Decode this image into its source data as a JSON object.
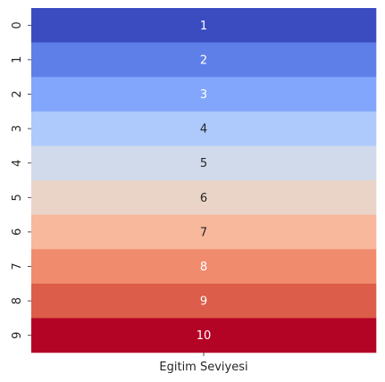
{
  "chart_data": {
    "type": "heatmap",
    "title": "",
    "xlabel": "",
    "ylabel": "",
    "columns": [
      "Egitim Seviyesi"
    ],
    "rows": [
      "0",
      "1",
      "2",
      "3",
      "4",
      "5",
      "6",
      "7",
      "8",
      "9"
    ],
    "values": [
      [
        1
      ],
      [
        2
      ],
      [
        3
      ],
      [
        4
      ],
      [
        5
      ],
      [
        6
      ],
      [
        7
      ],
      [
        8
      ],
      [
        9
      ],
      [
        10
      ]
    ],
    "annotations": [
      "1",
      "2",
      "3",
      "4",
      "5",
      "6",
      "7",
      "8",
      "9",
      "10"
    ],
    "cell_colors": [
      "#3b4cc0",
      "#5f7fe8",
      "#82a6fb",
      "#aec9fc",
      "#d0daea",
      "#ead4c8",
      "#f7b89c",
      "#f08b6e",
      "#dc5d4a",
      "#b40426"
    ],
    "annotation_colors": [
      "#ffffff",
      "#ffffff",
      "#ffffff",
      "#262626",
      "#262626",
      "#262626",
      "#262626",
      "#ffffff",
      "#ffffff",
      "#ffffff"
    ],
    "colormap": "coolwarm",
    "vmin": 1,
    "vmax": 10,
    "colorbar": false,
    "grid": false
  }
}
